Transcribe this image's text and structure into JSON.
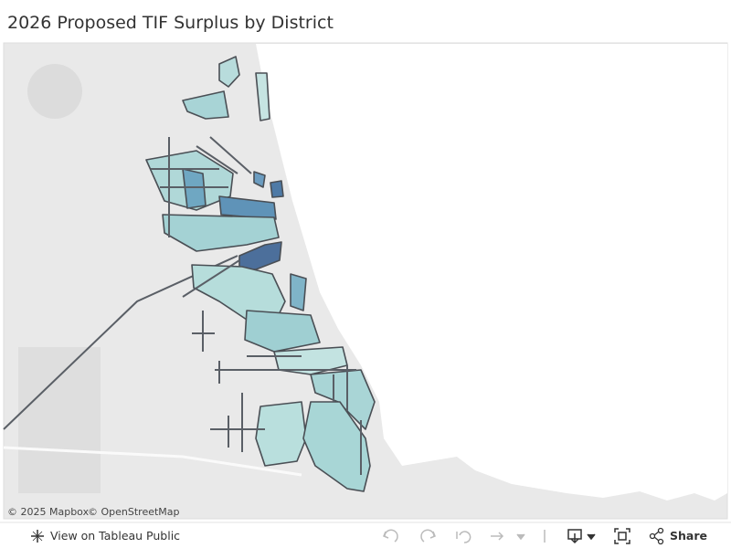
{
  "header": {
    "title": "2026 Proposed TIF Surplus by District"
  },
  "map": {
    "attribution": [
      "© 2025 Mapbox",
      "© OpenStreetMap"
    ]
  },
  "toolbar": {
    "view_link": "View on Tableau Public",
    "share": "Share"
  }
}
